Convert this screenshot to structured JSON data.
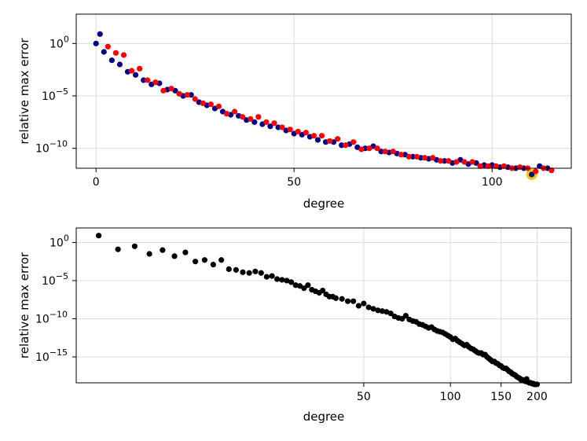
{
  "chart_data": [
    {
      "type": "scatter",
      "title": "",
      "xlabel": "degree",
      "ylabel": "relative max error",
      "x_scale": "linear",
      "y_scale": "log10",
      "xlim": [
        -5,
        120
      ],
      "ylim_exp": [
        -11.9,
        2.8
      ],
      "x_ticks": [
        0,
        50,
        100
      ],
      "y_tick_exponents": [
        0,
        -5,
        -10
      ],
      "grid": true,
      "legend": "none",
      "series": [
        {
          "color": "#00008b",
          "x": [
            0,
            1,
            2,
            4,
            6,
            8,
            10,
            12,
            14,
            16,
            18,
            20,
            22,
            24,
            26,
            28,
            30,
            32,
            34,
            36,
            38,
            40,
            42,
            44,
            46,
            48,
            50,
            52,
            54,
            56,
            58,
            60,
            62,
            64,
            66,
            68,
            70,
            72,
            74,
            76,
            78,
            80,
            82,
            84,
            86,
            88,
            90,
            92,
            94,
            96,
            98,
            100,
            102,
            104,
            106,
            108,
            110,
            112,
            114
          ],
          "log10_y": [
            0.0,
            0.9,
            -0.8,
            -1.6,
            -2.0,
            -2.7,
            -3.0,
            -3.5,
            -3.9,
            -3.8,
            -4.4,
            -4.5,
            -5.0,
            -4.9,
            -5.6,
            -5.9,
            -6.2,
            -6.5,
            -6.8,
            -6.9,
            -7.3,
            -7.5,
            -7.7,
            -7.9,
            -8.0,
            -8.3,
            -8.6,
            -8.7,
            -8.9,
            -9.2,
            -9.4,
            -9.4,
            -9.7,
            -9.6,
            -9.9,
            -10.0,
            -9.8,
            -10.3,
            -10.4,
            -10.5,
            -10.6,
            -10.8,
            -10.9,
            -11.0,
            -11.1,
            -11.2,
            -11.4,
            -11.1,
            -11.5,
            -11.4,
            -11.6,
            -11.6,
            -11.8,
            -11.8,
            -11.9,
            -11.9,
            -12.5,
            -11.7,
            -11.9
          ]
        },
        {
          "color": "#ff0000",
          "x": [
            3,
            5,
            7,
            9,
            11,
            13,
            15,
            17,
            19,
            21,
            23,
            25,
            27,
            29,
            31,
            33,
            35,
            37,
            39,
            41,
            43,
            45,
            47,
            49,
            51,
            53,
            55,
            57,
            59,
            61,
            63,
            65,
            67,
            69,
            71,
            73,
            75,
            77,
            79,
            81,
            83,
            85,
            87,
            89,
            91,
            93,
            95,
            97,
            99,
            101,
            103,
            105,
            107,
            109,
            111,
            113,
            115
          ],
          "log10_y": [
            -0.3,
            -0.9,
            -1.1,
            -2.6,
            -2.4,
            -3.5,
            -3.7,
            -4.5,
            -4.3,
            -4.8,
            -4.9,
            -5.3,
            -5.7,
            -5.8,
            -6.0,
            -6.7,
            -6.5,
            -7.0,
            -7.2,
            -7.0,
            -7.5,
            -7.6,
            -8.0,
            -8.2,
            -8.4,
            -8.5,
            -8.8,
            -8.8,
            -9.3,
            -9.1,
            -9.7,
            -9.4,
            -10.1,
            -10.0,
            -10.0,
            -10.3,
            -10.3,
            -10.6,
            -10.8,
            -10.8,
            -10.9,
            -10.9,
            -11.2,
            -11.2,
            -11.3,
            -11.3,
            -11.3,
            -11.7,
            -11.7,
            -11.7,
            -11.7,
            -11.9,
            -11.8,
            -11.9,
            -12.2,
            -11.9,
            -12.1
          ]
        }
      ],
      "highlight": {
        "x": 110,
        "log10_y": -12.5,
        "color": "#f5c518"
      }
    },
    {
      "type": "scatter",
      "title": "",
      "xlabel": "degree",
      "ylabel": "relative max error",
      "x_scale": "log10",
      "y_scale": "log10",
      "xlim_log": [
        0.7,
        2.42
      ],
      "ylim_exp": [
        -18.4,
        1.9
      ],
      "x_ticks": [
        50,
        100,
        150,
        200
      ],
      "y_tick_exponents": [
        0,
        -5,
        -10,
        -15
      ],
      "grid": true,
      "legend": "none",
      "series": [
        {
          "color": "#000000",
          "x": [
            6,
            7,
            8,
            9,
            10,
            11,
            12,
            13,
            14,
            15,
            16,
            17,
            18,
            19,
            20,
            21,
            22,
            23,
            24,
            25,
            26,
            27,
            28,
            29,
            30,
            31,
            32,
            33,
            34,
            35,
            36,
            37,
            38,
            39,
            40,
            42,
            44,
            46,
            48,
            50,
            52,
            54,
            56,
            58,
            60,
            62,
            64,
            66,
            68,
            70,
            72,
            74,
            76,
            78,
            80,
            82,
            84,
            86,
            88,
            90,
            92,
            94,
            96,
            98,
            100,
            102,
            104,
            106,
            108,
            110,
            112,
            114,
            116,
            118,
            120,
            122,
            124,
            126,
            128,
            130,
            132,
            134,
            136,
            138,
            140,
            142,
            144,
            146,
            148,
            150,
            152,
            154,
            156,
            158,
            160,
            162,
            164,
            166,
            168,
            170,
            172,
            174,
            176,
            178,
            180,
            182,
            184,
            186,
            188,
            190,
            192,
            194,
            196,
            198,
            200
          ],
          "log10_y": [
            0.9,
            -0.9,
            -0.5,
            -1.5,
            -1.0,
            -1.8,
            -1.3,
            -2.5,
            -2.3,
            -2.9,
            -2.3,
            -3.5,
            -3.6,
            -3.9,
            -4.0,
            -3.8,
            -4.0,
            -4.5,
            -4.4,
            -4.8,
            -4.9,
            -5.0,
            -5.2,
            -5.6,
            -5.7,
            -6.0,
            -5.6,
            -6.2,
            -6.4,
            -6.6,
            -6.3,
            -6.8,
            -7.1,
            -7.1,
            -7.3,
            -7.4,
            -7.7,
            -7.7,
            -8.3,
            -8.0,
            -8.5,
            -8.7,
            -8.9,
            -9.0,
            -9.1,
            -9.3,
            -9.7,
            -9.9,
            -10.0,
            -9.6,
            -10.1,
            -10.3,
            -10.4,
            -10.7,
            -10.8,
            -11.0,
            -11.2,
            -11.1,
            -11.4,
            -11.6,
            -11.7,
            -11.8,
            -12.0,
            -12.2,
            -12.4,
            -12.7,
            -12.6,
            -12.9,
            -13.1,
            -13.3,
            -13.5,
            -13.4,
            -13.7,
            -13.9,
            -14.0,
            -14.2,
            -14.4,
            -14.5,
            -14.5,
            -14.7,
            -14.7,
            -15.0,
            -15.2,
            -15.4,
            -15.6,
            -15.6,
            -15.8,
            -15.9,
            -16.1,
            -16.2,
            -16.4,
            -16.5,
            -16.5,
            -16.7,
            -16.9,
            -17.0,
            -17.2,
            -17.3,
            -17.4,
            -17.6,
            -17.7,
            -17.8,
            -18.0,
            -18.0,
            -18.1,
            -18.2,
            -17.9,
            -18.3,
            -18.4,
            -18.4,
            -18.5,
            -18.5,
            -18.6,
            -18.6,
            -18.6
          ]
        }
      ]
    }
  ]
}
